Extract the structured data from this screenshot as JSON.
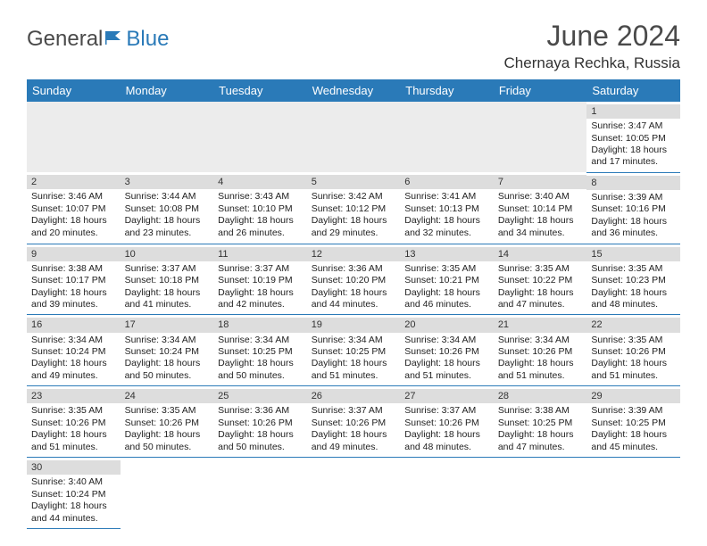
{
  "logo": {
    "part1": "General",
    "part2": "Blue"
  },
  "title": {
    "month_year": "June 2024",
    "location": "Chernaya Rechka, Russia"
  },
  "weekdays": [
    "Sunday",
    "Monday",
    "Tuesday",
    "Wednesday",
    "Thursday",
    "Friday",
    "Saturday"
  ],
  "colors": {
    "header_bg": "#2a7ab8",
    "header_text": "#ffffff",
    "daynum_bg": "#dddddd",
    "row_border": "#2a7ab8",
    "empty_bg": "#ececec",
    "text": "#222222",
    "title_text": "#4a4a4a"
  },
  "fonts": {
    "title_pt": 32,
    "location_pt": 17,
    "weekday_pt": 13,
    "cell_pt": 10.5,
    "daynum_pt": 11
  },
  "layout": {
    "first_weekday_index": 6,
    "days_in_month": 30,
    "columns": 7
  },
  "labels": {
    "sunrise": "Sunrise:",
    "sunset": "Sunset:",
    "daylight": "Daylight:"
  },
  "days": [
    {
      "n": 1,
      "sunrise": "3:47 AM",
      "sunset": "10:05 PM",
      "daylight": "18 hours and 17 minutes."
    },
    {
      "n": 2,
      "sunrise": "3:46 AM",
      "sunset": "10:07 PM",
      "daylight": "18 hours and 20 minutes."
    },
    {
      "n": 3,
      "sunrise": "3:44 AM",
      "sunset": "10:08 PM",
      "daylight": "18 hours and 23 minutes."
    },
    {
      "n": 4,
      "sunrise": "3:43 AM",
      "sunset": "10:10 PM",
      "daylight": "18 hours and 26 minutes."
    },
    {
      "n": 5,
      "sunrise": "3:42 AM",
      "sunset": "10:12 PM",
      "daylight": "18 hours and 29 minutes."
    },
    {
      "n": 6,
      "sunrise": "3:41 AM",
      "sunset": "10:13 PM",
      "daylight": "18 hours and 32 minutes."
    },
    {
      "n": 7,
      "sunrise": "3:40 AM",
      "sunset": "10:14 PM",
      "daylight": "18 hours and 34 minutes."
    },
    {
      "n": 8,
      "sunrise": "3:39 AM",
      "sunset": "10:16 PM",
      "daylight": "18 hours and 36 minutes."
    },
    {
      "n": 9,
      "sunrise": "3:38 AM",
      "sunset": "10:17 PM",
      "daylight": "18 hours and 39 minutes."
    },
    {
      "n": 10,
      "sunrise": "3:37 AM",
      "sunset": "10:18 PM",
      "daylight": "18 hours and 41 minutes."
    },
    {
      "n": 11,
      "sunrise": "3:37 AM",
      "sunset": "10:19 PM",
      "daylight": "18 hours and 42 minutes."
    },
    {
      "n": 12,
      "sunrise": "3:36 AM",
      "sunset": "10:20 PM",
      "daylight": "18 hours and 44 minutes."
    },
    {
      "n": 13,
      "sunrise": "3:35 AM",
      "sunset": "10:21 PM",
      "daylight": "18 hours and 46 minutes."
    },
    {
      "n": 14,
      "sunrise": "3:35 AM",
      "sunset": "10:22 PM",
      "daylight": "18 hours and 47 minutes."
    },
    {
      "n": 15,
      "sunrise": "3:35 AM",
      "sunset": "10:23 PM",
      "daylight": "18 hours and 48 minutes."
    },
    {
      "n": 16,
      "sunrise": "3:34 AM",
      "sunset": "10:24 PM",
      "daylight": "18 hours and 49 minutes."
    },
    {
      "n": 17,
      "sunrise": "3:34 AM",
      "sunset": "10:24 PM",
      "daylight": "18 hours and 50 minutes."
    },
    {
      "n": 18,
      "sunrise": "3:34 AM",
      "sunset": "10:25 PM",
      "daylight": "18 hours and 50 minutes."
    },
    {
      "n": 19,
      "sunrise": "3:34 AM",
      "sunset": "10:25 PM",
      "daylight": "18 hours and 51 minutes."
    },
    {
      "n": 20,
      "sunrise": "3:34 AM",
      "sunset": "10:26 PM",
      "daylight": "18 hours and 51 minutes."
    },
    {
      "n": 21,
      "sunrise": "3:34 AM",
      "sunset": "10:26 PM",
      "daylight": "18 hours and 51 minutes."
    },
    {
      "n": 22,
      "sunrise": "3:35 AM",
      "sunset": "10:26 PM",
      "daylight": "18 hours and 51 minutes."
    },
    {
      "n": 23,
      "sunrise": "3:35 AM",
      "sunset": "10:26 PM",
      "daylight": "18 hours and 51 minutes."
    },
    {
      "n": 24,
      "sunrise": "3:35 AM",
      "sunset": "10:26 PM",
      "daylight": "18 hours and 50 minutes."
    },
    {
      "n": 25,
      "sunrise": "3:36 AM",
      "sunset": "10:26 PM",
      "daylight": "18 hours and 50 minutes."
    },
    {
      "n": 26,
      "sunrise": "3:37 AM",
      "sunset": "10:26 PM",
      "daylight": "18 hours and 49 minutes."
    },
    {
      "n": 27,
      "sunrise": "3:37 AM",
      "sunset": "10:26 PM",
      "daylight": "18 hours and 48 minutes."
    },
    {
      "n": 28,
      "sunrise": "3:38 AM",
      "sunset": "10:25 PM",
      "daylight": "18 hours and 47 minutes."
    },
    {
      "n": 29,
      "sunrise": "3:39 AM",
      "sunset": "10:25 PM",
      "daylight": "18 hours and 45 minutes."
    },
    {
      "n": 30,
      "sunrise": "3:40 AM",
      "sunset": "10:24 PM",
      "daylight": "18 hours and 44 minutes."
    }
  ]
}
